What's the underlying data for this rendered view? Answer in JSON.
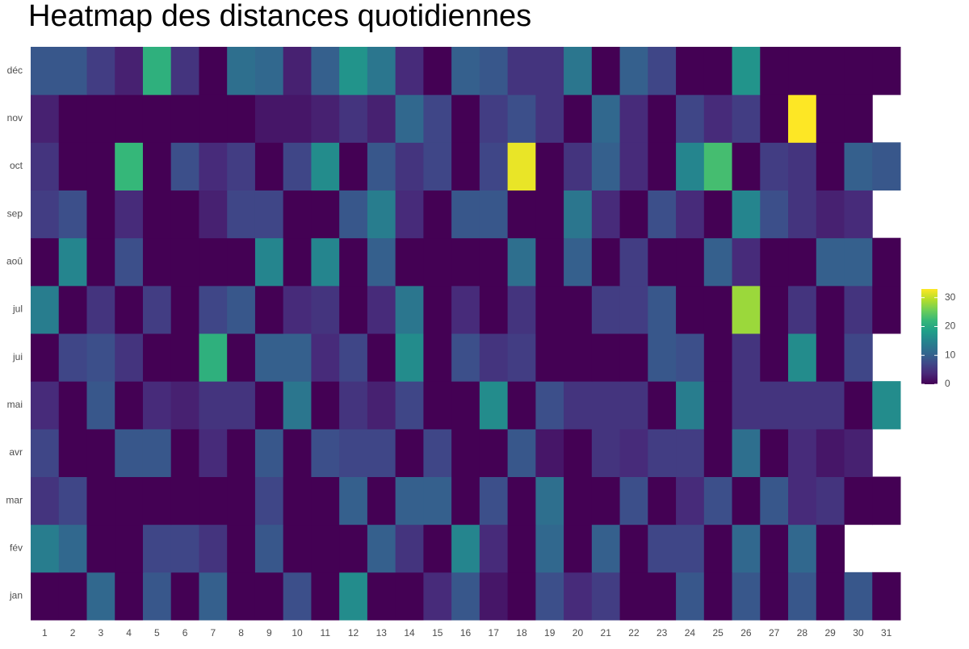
{
  "chart_data": {
    "type": "heatmap",
    "title": "Heatmap des distances quotidiennes",
    "x": [
      1,
      2,
      3,
      4,
      5,
      6,
      7,
      8,
      9,
      10,
      11,
      12,
      13,
      14,
      15,
      16,
      17,
      18,
      19,
      20,
      21,
      22,
      23,
      24,
      25,
      26,
      27,
      28,
      29,
      30,
      31
    ],
    "y": [
      "jan",
      "fév",
      "mar",
      "avr",
      "mai",
      "jui",
      "jul",
      "aoû",
      "sep",
      "oct",
      "nov",
      "déc"
    ],
    "z": [
      [
        0,
        0,
        11,
        0,
        9,
        0,
        10,
        0,
        0,
        8,
        0,
        16,
        0,
        0,
        4,
        9,
        2,
        0,
        8,
        4,
        6,
        0,
        0,
        9,
        0,
        9,
        0,
        9,
        0,
        9,
        0
      ],
      [
        14,
        11,
        0,
        0,
        7,
        7,
        5,
        0,
        9,
        0,
        0,
        0,
        10,
        5,
        0,
        15,
        4,
        0,
        11,
        0,
        10,
        0,
        7,
        7,
        0,
        11,
        0,
        11,
        0,
        null,
        null
      ],
      [
        5,
        7,
        0,
        0,
        0,
        0,
        0,
        0,
        7,
        0,
        0,
        10,
        0,
        10,
        10,
        0,
        8,
        0,
        12,
        0,
        0,
        8,
        0,
        4,
        8,
        0,
        9,
        4,
        5,
        0,
        0
      ],
      [
        7,
        0,
        0,
        9,
        9,
        0,
        4,
        0,
        9,
        0,
        8,
        7,
        7,
        0,
        7,
        0,
        0,
        9,
        2,
        0,
        5,
        4,
        6,
        6,
        0,
        12,
        0,
        4,
        2,
        3,
        null
      ],
      [
        4,
        0,
        9,
        0,
        4,
        3,
        5,
        5,
        0,
        13,
        0,
        5,
        3,
        7,
        0,
        0,
        16,
        0,
        8,
        5,
        5,
        5,
        0,
        14,
        0,
        5,
        5,
        5,
        5,
        0,
        16
      ],
      [
        0,
        7,
        8,
        5,
        0,
        0,
        21,
        0,
        10,
        10,
        4,
        7,
        0,
        16,
        0,
        8,
        5,
        6,
        0,
        0,
        0,
        0,
        9,
        8,
        0,
        5,
        0,
        16,
        0,
        7,
        null
      ],
      [
        14,
        0,
        5,
        0,
        6,
        0,
        7,
        9,
        0,
        4,
        5,
        0,
        4,
        13,
        0,
        4,
        0,
        5,
        0,
        0,
        6,
        6,
        9,
        0,
        0,
        28,
        0,
        5,
        0,
        5,
        0
      ],
      [
        0,
        15,
        0,
        8,
        0,
        0,
        0,
        0,
        15,
        0,
        15,
        0,
        10,
        0,
        0,
        0,
        0,
        12,
        0,
        10,
        0,
        6,
        0,
        0,
        10,
        4,
        0,
        0,
        10,
        10,
        0
      ],
      [
        6,
        8,
        0,
        4,
        0,
        0,
        3,
        7,
        7,
        0,
        0,
        9,
        14,
        4,
        0,
        9,
        9,
        0,
        0,
        13,
        4,
        0,
        8,
        4,
        0,
        15,
        8,
        5,
        3,
        4,
        null
      ],
      [
        5,
        0,
        0,
        22,
        0,
        8,
        4,
        6,
        0,
        7,
        16,
        0,
        9,
        5,
        7,
        0,
        7,
        32,
        0,
        5,
        10,
        4,
        0,
        15,
        23,
        0,
        6,
        5,
        0,
        10,
        9
      ],
      [
        3,
        0,
        0,
        0,
        0,
        0,
        0,
        0,
        2,
        2,
        3,
        5,
        3,
        11,
        7,
        0,
        6,
        8,
        5,
        0,
        11,
        4,
        0,
        7,
        4,
        6,
        0,
        33,
        0,
        0,
        null
      ],
      [
        9,
        9,
        6,
        3,
        21,
        5,
        0,
        12,
        11,
        3,
        10,
        17,
        13,
        4,
        0,
        10,
        9,
        5,
        5,
        13,
        0,
        10,
        7,
        0,
        0,
        17,
        0,
        0,
        0,
        0,
        0
      ]
    ],
    "colorscale": [
      "#440154",
      "#482878",
      "#3e4989",
      "#31688e",
      "#26828e",
      "#1f9e89",
      "#35b779",
      "#6ece58",
      "#b5de2b",
      "#fde725"
    ],
    "zlim": [
      0,
      33
    ],
    "zticks": [
      0,
      10,
      20,
      30
    ]
  }
}
